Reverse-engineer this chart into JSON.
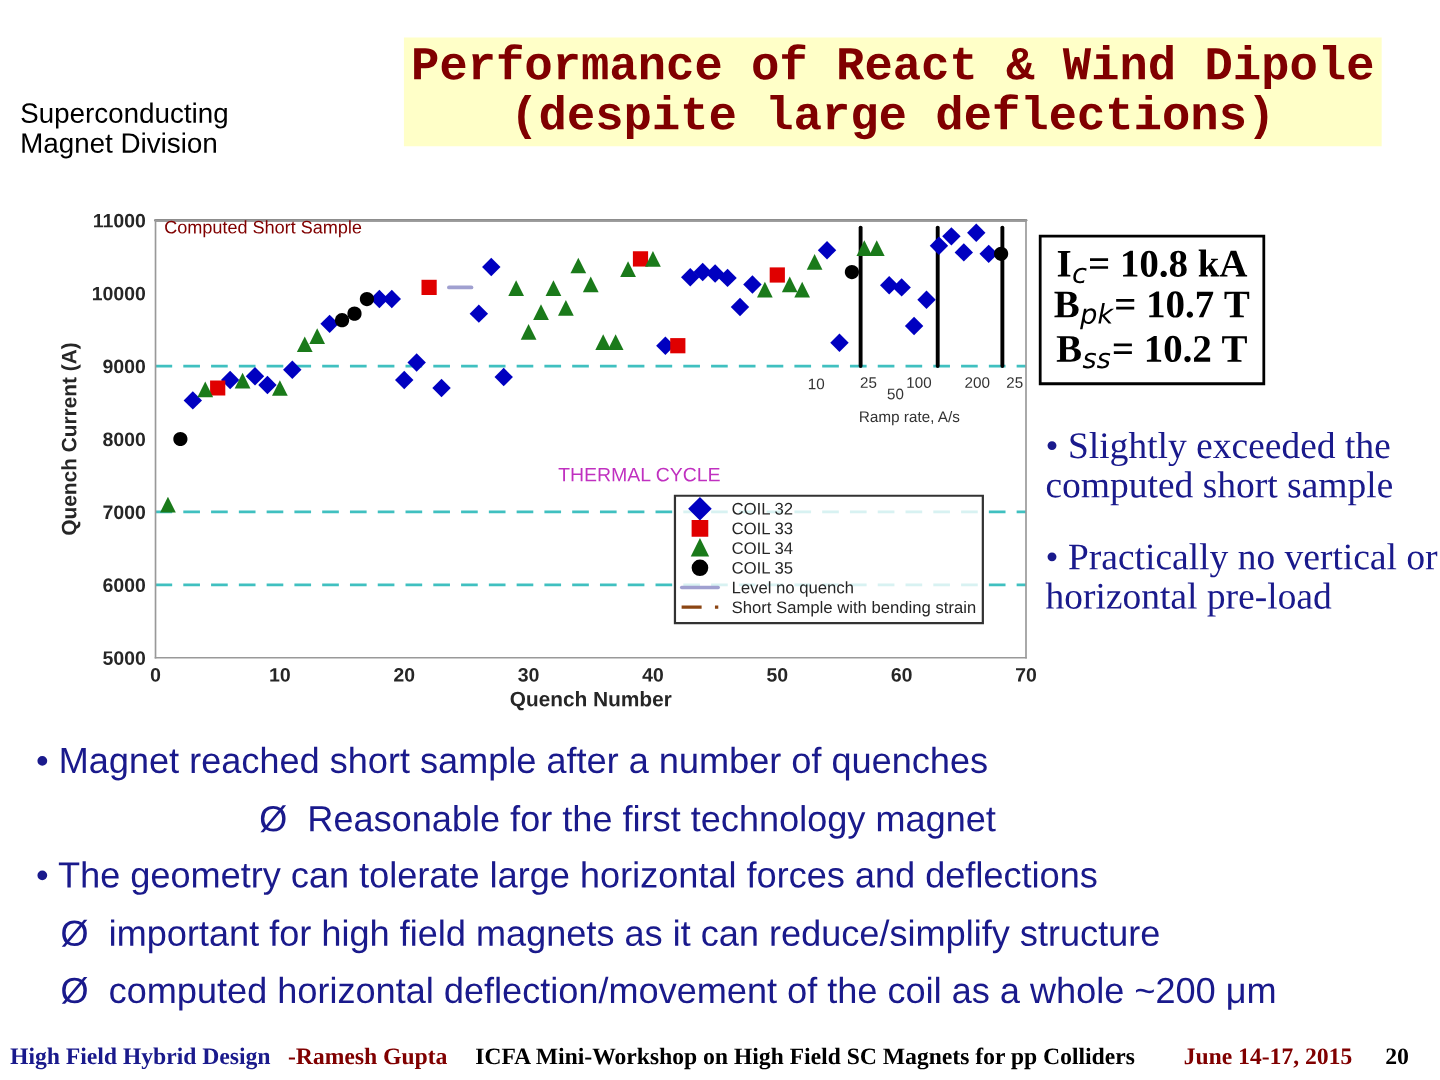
{
  "chart_data": {
    "type": "scatter",
    "title": "Performance of React & Wind Dipole\n(despite large deflections)",
    "xlabel": "Quench Number",
    "ylabel": "Quench Current (A)",
    "xlim": [
      0,
      70
    ],
    "ylim": [
      5000,
      11000
    ],
    "xticks": [
      0,
      10,
      20,
      30,
      40,
      50,
      60,
      70
    ],
    "yticks": [
      5000,
      6000,
      7000,
      8000,
      9000,
      10000,
      11000
    ],
    "grid": false,
    "legend": "bottom right",
    "series": [
      {
        "name": "COIL 32",
        "color": "#0000c0",
        "marker": "diamond",
        "x": [
          3,
          6,
          8,
          9,
          11,
          14,
          18,
          19,
          20,
          21,
          23,
          26,
          27,
          28,
          41,
          43,
          44,
          45,
          46,
          47,
          48,
          54,
          55,
          59,
          60,
          61,
          62,
          63,
          64,
          65,
          66,
          67
        ],
        "values": [
          8530,
          8810,
          8860,
          8740,
          8950,
          9580,
          9920,
          9920,
          8810,
          9050,
          8700,
          9720,
          10360,
          8850,
          9280,
          10220,
          10290,
          10270,
          10210,
          9810,
          10120,
          10590,
          9320,
          10110,
          10080,
          9550,
          9910,
          10650,
          10780,
          10560,
          10830,
          10540
        ]
      },
      {
        "name": "COIL 33",
        "color": "#e00000",
        "marker": "square",
        "x": [
          5,
          22,
          39,
          42,
          50
        ],
        "values": [
          8700,
          10080,
          10470,
          9280,
          10250
        ]
      },
      {
        "name": "COIL 34",
        "color": "#1a7a1a",
        "marker": "triangle",
        "x": [
          1,
          4,
          7,
          10,
          12,
          13,
          29,
          30,
          31,
          32,
          33,
          34,
          35,
          36,
          37,
          38,
          40,
          49,
          51,
          52,
          53,
          57,
          58
        ],
        "values": [
          7100,
          8680,
          8800,
          8700,
          9300,
          9410,
          10070,
          9470,
          9740,
          10070,
          9800,
          10380,
          10120,
          9330,
          9330,
          10330,
          10470,
          10050,
          10120,
          10050,
          10430,
          10620,
          10620
        ]
      },
      {
        "name": "COIL 35",
        "color": "#000000",
        "marker": "circle",
        "x": [
          2,
          15,
          16,
          17,
          56,
          68
        ],
        "values": [
          8000,
          9630,
          9720,
          9920,
          10290,
          10540
        ]
      },
      {
        "name": "Level no quench",
        "type": "line",
        "color": "#a0a0d0",
        "line_style": "solid",
        "x": [
          23.6,
          25.4
        ],
        "values": [
          10080,
          10080
        ]
      },
      {
        "name": "Short Sample with bending strain",
        "type": "line",
        "color": "#8b4513",
        "line_style": "dashed"
      },
      {
        "type": "line",
        "color": "#000000",
        "line_style": "solid",
        "x": [
          56.7,
          56.7
        ],
        "values": [
          10900,
          9000
        ]
      },
      {
        "type": "line",
        "color": "#000000",
        "line_style": "solid",
        "x": [
          62.9,
          62.9
        ],
        "values": [
          10900,
          9000
        ]
      },
      {
        "type": "line",
        "color": "#000000",
        "line_style": "solid",
        "x": [
          68.1,
          68.1
        ],
        "values": [
          10900,
          9000
        ]
      }
    ],
    "ref_lines": [
      {
        "axis": "y",
        "value": 11000,
        "label": "Computed Short Sample",
        "color": "#808080",
        "line_style": "solid"
      },
      {
        "axis": "y",
        "value": 9000,
        "color": "#40c0c0",
        "line_style": "dashed"
      },
      {
        "axis": "y",
        "value": 7000,
        "color": "#40c0c0",
        "line_style": "dashed"
      },
      {
        "axis": "y",
        "value": 6000,
        "color": "#40c0c0",
        "line_style": "dashed"
      }
    ],
    "annotations": [
      "Superconducting\nMagnet Division",
      "I$_{c}$= 10.8 kA\nB$_{pk}$= 10.7 T\nB$_{ss}$= 10.2 T",
      "• Slightly exceeded the computed short sample",
      "• Practically no vertical or horizontal pre-load",
      "THERMAL CYCLE",
      "10",
      "25",
      "50",
      "100",
      "200",
      "25",
      "Ramp rate, A/s",
      "• Magnet reached short sample after a number of quenches",
      "Ø  Reasonable for the first technology magnet",
      "• The geometry can tolerate large horizontal forces and deflections",
      "Ø  important for high field magnets as it can reduce/simplify structure",
      "Ø  computed horizontal deflection/movement of the coil as a whole ~200 μm",
      "High Field Hybrid Design",
      "-Ramesh Gupta",
      "ICFA Mini-Workshop on High Field SC Magnets for pp Colliders",
      "June 14-17, 2015",
      "20"
    ]
  }
}
